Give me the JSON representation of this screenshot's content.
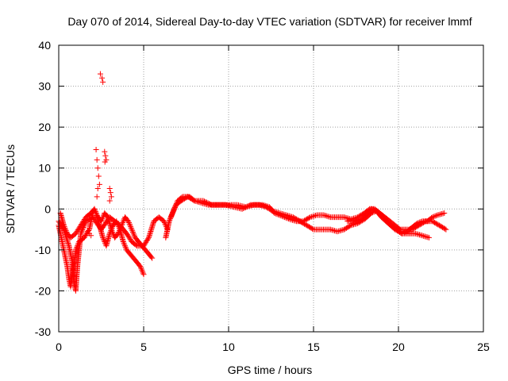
{
  "chart_data": {
    "type": "scatter",
    "title": "Day 070 of 2014, Sidereal Day-to-day VTEC variation (SDTVAR) for receiver lmmf",
    "xlabel": "GPS time / hours",
    "ylabel": "SDTVAR / TECUs",
    "xlim": [
      0,
      25
    ],
    "ylim": [
      -30,
      40
    ],
    "x_ticks": [
      0,
      5,
      10,
      15,
      20,
      25
    ],
    "y_ticks": [
      -30,
      -20,
      -10,
      0,
      10,
      20,
      30,
      40
    ],
    "x_tick_labels": [
      "0",
      "5",
      "10",
      "15",
      "20",
      "25"
    ],
    "y_tick_labels": [
      "-30",
      "-20",
      "-10",
      "0",
      "10",
      "20",
      "30",
      "40"
    ],
    "grid": true,
    "marker": "+",
    "series": [
      {
        "name": "track-1",
        "color": "#ff0000",
        "points": [
          [
            0.0,
            -4
          ],
          [
            0.2,
            -8
          ],
          [
            0.35,
            -11
          ],
          [
            0.5,
            -14
          ],
          [
            0.6,
            -17
          ],
          [
            0.7,
            -19
          ],
          [
            0.85,
            -15
          ],
          [
            1.0,
            -10
          ],
          [
            1.2,
            -8
          ],
          [
            1.5,
            -7
          ],
          [
            1.8,
            -5
          ],
          [
            2.0,
            -1
          ],
          [
            2.1,
            0
          ],
          [
            2.2,
            -1
          ],
          [
            2.4,
            -4
          ],
          [
            2.6,
            -7
          ],
          [
            2.8,
            -9
          ],
          [
            3.0,
            -6
          ],
          [
            3.2,
            -4
          ],
          [
            3.4,
            -3
          ],
          [
            3.6,
            -5
          ],
          [
            3.8,
            -8
          ],
          [
            4.0,
            -10
          ],
          [
            4.2,
            -11
          ],
          [
            4.4,
            -12
          ],
          [
            4.6,
            -13
          ],
          [
            4.8,
            -14
          ],
          [
            5.0,
            -16
          ]
        ]
      },
      {
        "name": "track-2",
        "color": "#ff0000",
        "points": [
          [
            0.1,
            -1
          ],
          [
            0.3,
            -4
          ],
          [
            0.5,
            -6
          ],
          [
            0.7,
            -7
          ],
          [
            1.0,
            -6
          ],
          [
            1.3,
            -4
          ],
          [
            1.6,
            -2
          ],
          [
            1.9,
            -1
          ],
          [
            2.1,
            0
          ],
          [
            2.3,
            -2
          ],
          [
            2.5,
            -3
          ],
          [
            2.7,
            -1
          ],
          [
            2.9,
            -2
          ],
          [
            3.1,
            -5
          ],
          [
            3.3,
            -7
          ],
          [
            3.5,
            -6
          ],
          [
            3.7,
            -4
          ],
          [
            3.9,
            -2
          ],
          [
            4.1,
            -3
          ],
          [
            4.3,
            -5
          ],
          [
            4.5,
            -7
          ],
          [
            4.7,
            -8
          ],
          [
            4.9,
            -9
          ],
          [
            5.1,
            -10
          ],
          [
            5.3,
            -11
          ],
          [
            5.5,
            -12
          ]
        ]
      },
      {
        "name": "track-3",
        "color": "#ff0000",
        "points": [
          [
            0.0,
            -3
          ],
          [
            0.3,
            -5
          ],
          [
            0.6,
            -9
          ],
          [
            0.8,
            -13
          ],
          [
            0.9,
            -18
          ],
          [
            1.0,
            -20
          ],
          [
            1.1,
            -14
          ],
          [
            1.3,
            -6
          ],
          [
            1.6,
            -3
          ],
          [
            2.0,
            -2
          ],
          [
            2.5,
            -5
          ],
          [
            3.0,
            -2
          ],
          [
            3.3,
            -3
          ],
          [
            3.6,
            -4
          ],
          [
            3.8,
            -5
          ],
          [
            4.0,
            -6
          ],
          [
            4.3,
            -8
          ],
          [
            4.6,
            -9
          ],
          [
            5.0,
            -9
          ],
          [
            5.3,
            -7
          ],
          [
            5.6,
            -3
          ],
          [
            5.9,
            -2
          ],
          [
            6.2,
            -3
          ],
          [
            6.4,
            -5
          ]
        ]
      },
      {
        "name": "track-4",
        "color": "#ff0000",
        "points": [
          [
            6.3,
            -7
          ],
          [
            6.5,
            -3
          ],
          [
            6.8,
            0
          ],
          [
            7.0,
            2
          ],
          [
            7.3,
            3
          ],
          [
            7.7,
            3
          ],
          [
            8.0,
            2
          ],
          [
            8.5,
            2
          ],
          [
            9.0,
            1
          ],
          [
            9.5,
            1
          ],
          [
            10.0,
            1
          ],
          [
            10.5,
            1
          ],
          [
            11.0,
            0.5
          ],
          [
            11.5,
            1
          ],
          [
            12.0,
            1
          ],
          [
            12.4,
            0.5
          ],
          [
            12.7,
            -1
          ],
          [
            13.0,
            -1.5
          ],
          [
            13.3,
            -2
          ],
          [
            13.6,
            -2.5
          ],
          [
            14.0,
            -3
          ],
          [
            14.4,
            -3
          ],
          [
            14.8,
            -2
          ],
          [
            15.2,
            -1.5
          ],
          [
            15.6,
            -1.5
          ],
          [
            16.0,
            -2
          ],
          [
            16.4,
            -2
          ],
          [
            16.8,
            -2
          ],
          [
            17.2,
            -2.5
          ],
          [
            17.6,
            -2
          ],
          [
            18.0,
            -1
          ],
          [
            18.3,
            0
          ],
          [
            18.6,
            0
          ],
          [
            18.9,
            -1
          ],
          [
            19.2,
            -2
          ],
          [
            19.5,
            -3
          ],
          [
            19.8,
            -4
          ],
          [
            20.1,
            -5
          ],
          [
            20.4,
            -5
          ],
          [
            20.8,
            -5
          ],
          [
            21.2,
            -4
          ],
          [
            21.6,
            -3
          ],
          [
            22.0,
            -3
          ],
          [
            22.4,
            -4
          ],
          [
            22.8,
            -5
          ]
        ]
      },
      {
        "name": "track-5",
        "color": "#ff0000",
        "points": [
          [
            6.6,
            -2
          ],
          [
            6.9,
            1
          ],
          [
            7.2,
            2
          ],
          [
            7.6,
            3
          ],
          [
            8.0,
            2
          ],
          [
            8.4,
            1.5
          ],
          [
            8.8,
            1
          ],
          [
            9.3,
            1
          ],
          [
            9.8,
            1
          ],
          [
            10.3,
            0.5
          ],
          [
            10.8,
            0
          ],
          [
            11.3,
            1
          ],
          [
            11.8,
            1
          ],
          [
            12.2,
            0.5
          ],
          [
            12.6,
            -0.5
          ],
          [
            13.0,
            -1
          ],
          [
            13.4,
            -1.5
          ],
          [
            13.8,
            -2
          ],
          [
            15.0,
            -5
          ],
          [
            15.5,
            -5
          ],
          [
            16.0,
            -5
          ],
          [
            16.4,
            -5.5
          ],
          [
            16.8,
            -5
          ],
          [
            17.2,
            -4
          ],
          [
            17.6,
            -3.5
          ],
          [
            18.0,
            -2.5
          ],
          [
            18.4,
            -1
          ],
          [
            18.7,
            -0.5
          ],
          [
            19.0,
            -1.5
          ],
          [
            19.3,
            -3
          ],
          [
            19.6,
            -4
          ],
          [
            19.9,
            -5
          ],
          [
            20.2,
            -6
          ],
          [
            20.5,
            -5.5
          ],
          [
            20.8,
            -4.5
          ],
          [
            21.1,
            -3.5
          ],
          [
            21.4,
            -3
          ],
          [
            21.7,
            -3
          ],
          [
            22.0,
            -2
          ],
          [
            22.3,
            -1.5
          ],
          [
            22.7,
            -1
          ]
        ]
      },
      {
        "name": "track-6",
        "color": "#ff0000",
        "points": [
          [
            17.0,
            -3
          ],
          [
            17.4,
            -3
          ],
          [
            17.8,
            -2.5
          ],
          [
            18.1,
            -1.5
          ],
          [
            18.4,
            0
          ],
          [
            18.7,
            -0.5
          ],
          [
            19.0,
            -2
          ],
          [
            19.4,
            -3.5
          ],
          [
            19.8,
            -5
          ],
          [
            20.2,
            -6
          ],
          [
            20.6,
            -6
          ],
          [
            21.0,
            -6
          ],
          [
            21.4,
            -6.5
          ],
          [
            21.8,
            -7
          ]
        ]
      },
      {
        "name": "spikes",
        "color": "#ff0000",
        "points": [
          [
            2.55,
            32
          ],
          [
            2.6,
            31
          ],
          [
            2.45,
            33
          ],
          [
            2.2,
            14.5
          ],
          [
            2.25,
            12
          ],
          [
            2.3,
            10
          ],
          [
            2.35,
            8
          ],
          [
            2.4,
            6
          ],
          [
            2.3,
            5
          ],
          [
            2.25,
            3
          ],
          [
            2.7,
            14
          ],
          [
            2.75,
            13
          ],
          [
            2.8,
            12
          ],
          [
            2.72,
            11.5
          ],
          [
            3.0,
            5
          ],
          [
            3.05,
            4
          ],
          [
            3.1,
            3
          ],
          [
            3.0,
            2
          ],
          [
            1.8,
            -6
          ],
          [
            1.9,
            -6.5
          ],
          [
            1.7,
            -5.5
          ]
        ]
      }
    ]
  }
}
